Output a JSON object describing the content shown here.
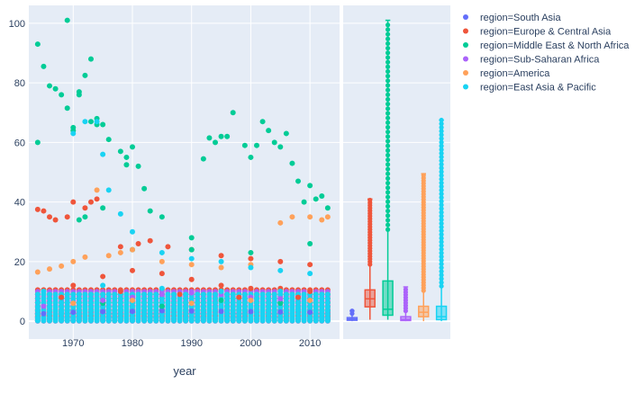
{
  "chart_data": {
    "type": "scatter",
    "xlabel": "year",
    "ylabel": "",
    "title": "",
    "xlim": [
      1962.5,
      2015
    ],
    "ylim": [
      -6,
      106
    ],
    "grid": true,
    "legend_position": "right",
    "x_ticks": [
      1970,
      1980,
      1990,
      2000,
      2010
    ],
    "y_ticks": [
      0,
      20,
      40,
      60,
      80,
      100
    ],
    "marginal": "box",
    "series": [
      {
        "name": "region=South Asia",
        "color": "#636efa",
        "points": [
          [
            1965,
            2.5
          ],
          [
            1970,
            3
          ],
          [
            1975,
            3.2
          ],
          [
            1980,
            3.3
          ],
          [
            1985,
            3.5
          ],
          [
            1990,
            3.4
          ],
          [
            1995,
            3.3
          ],
          [
            2000,
            3.2
          ],
          [
            2005,
            3.1
          ],
          [
            2010,
            3
          ]
        ],
        "box": {
          "min": 0,
          "q1": 0.3,
          "median": 0.7,
          "q3": 1.2,
          "max": 3.5
        }
      },
      {
        "name": "region=Europe & Central Asia",
        "color": "#ef553b",
        "points": [
          [
            1964,
            37.5
          ],
          [
            1965,
            37
          ],
          [
            1966,
            35
          ],
          [
            1967,
            34
          ],
          [
            1969,
            35
          ],
          [
            1970,
            40
          ],
          [
            1972,
            38
          ],
          [
            1973,
            40
          ],
          [
            1974,
            41
          ],
          [
            1978,
            25
          ],
          [
            1981,
            26
          ],
          [
            1983,
            27
          ],
          [
            1986,
            25
          ],
          [
            1990,
            24
          ],
          [
            1995,
            22
          ],
          [
            2000,
            21
          ],
          [
            2005,
            20
          ],
          [
            2010,
            19
          ],
          [
            1970,
            12
          ],
          [
            1975,
            15
          ],
          [
            1980,
            17
          ],
          [
            1985,
            16
          ],
          [
            1990,
            14
          ],
          [
            1995,
            12
          ],
          [
            2000,
            11
          ],
          [
            2005,
            11
          ],
          [
            2010,
            10
          ],
          [
            1968,
            8
          ],
          [
            1978,
            10
          ],
          [
            1988,
            9
          ],
          [
            1998,
            8
          ],
          [
            2008,
            8
          ]
        ],
        "box": {
          "min": 0.5,
          "q1": 4.8,
          "median": 7.5,
          "q3": 10.5,
          "max": 41
        }
      },
      {
        "name": "region=Middle East & North Africa",
        "color": "#00cc96",
        "points": [
          [
            1964,
            93
          ],
          [
            1964,
            60
          ],
          [
            1965,
            85.5
          ],
          [
            1966,
            79
          ],
          [
            1967,
            78
          ],
          [
            1968,
            76
          ],
          [
            1969,
            101
          ],
          [
            1969,
            71.5
          ],
          [
            1970,
            65
          ],
          [
            1970,
            64
          ],
          [
            1971,
            77
          ],
          [
            1971,
            76
          ],
          [
            1972,
            82.5
          ],
          [
            1973,
            88
          ],
          [
            1973,
            67
          ],
          [
            1974,
            68
          ],
          [
            1974,
            66
          ],
          [
            1975,
            66
          ],
          [
            1976,
            61
          ],
          [
            1978,
            57
          ],
          [
            1979,
            52.5
          ],
          [
            1979,
            55
          ],
          [
            1980,
            58.5
          ],
          [
            1981,
            52
          ],
          [
            1982,
            44.5
          ],
          [
            1971,
            34
          ],
          [
            1972,
            35
          ],
          [
            1975,
            38
          ],
          [
            1983,
            37
          ],
          [
            1985,
            35
          ],
          [
            1990,
            28
          ],
          [
            1992,
            54.5
          ],
          [
            1993,
            61.5
          ],
          [
            1994,
            60
          ],
          [
            1995,
            62
          ],
          [
            1996,
            62
          ],
          [
            1997,
            70
          ],
          [
            1999,
            59
          ],
          [
            2000,
            55
          ],
          [
            2001,
            59
          ],
          [
            2002,
            67
          ],
          [
            2003,
            64
          ],
          [
            2004,
            60
          ],
          [
            2005,
            58.5
          ],
          [
            2006,
            63
          ],
          [
            2007,
            53
          ],
          [
            2008,
            47
          ],
          [
            2009,
            40
          ],
          [
            2010,
            45.5
          ],
          [
            2011,
            41
          ],
          [
            2012,
            42
          ],
          [
            2013,
            38
          ],
          [
            1980,
            24
          ],
          [
            1990,
            24
          ],
          [
            2000,
            23
          ],
          [
            2010,
            26
          ],
          [
            1975,
            6
          ],
          [
            1985,
            5
          ],
          [
            1995,
            7
          ],
          [
            2005,
            6
          ]
        ],
        "box": {
          "min": 0.5,
          "q1": 2,
          "median": 4,
          "q3": 13.5,
          "max": 101
        }
      },
      {
        "name": "region=Sub-Saharan Africa",
        "color": "#ab63fa",
        "points": [
          [
            1965,
            5
          ],
          [
            1970,
            6
          ],
          [
            1975,
            7
          ],
          [
            1980,
            8
          ],
          [
            1985,
            9
          ],
          [
            1990,
            9.5
          ],
          [
            1995,
            9
          ],
          [
            2000,
            8
          ],
          [
            2005,
            7.5
          ],
          [
            2010,
            7
          ]
        ],
        "box": {
          "min": 0,
          "q1": 0.2,
          "median": 0.6,
          "q3": 1.5,
          "max": 11.5
        }
      },
      {
        "name": "region=America",
        "color": "#ffa15a",
        "points": [
          [
            1964,
            16.5
          ],
          [
            1966,
            17.5
          ],
          [
            1968,
            18.5
          ],
          [
            1970,
            20
          ],
          [
            1972,
            21.5
          ],
          [
            1974,
            44
          ],
          [
            1976,
            22
          ],
          [
            1978,
            23
          ],
          [
            1980,
            24
          ],
          [
            1985,
            20
          ],
          [
            1990,
            19
          ],
          [
            1995,
            18
          ],
          [
            2000,
            19
          ],
          [
            2005,
            33
          ],
          [
            2007,
            35
          ],
          [
            2010,
            35
          ],
          [
            2012,
            34
          ],
          [
            2013,
            35
          ],
          [
            1970,
            6
          ],
          [
            1980,
            7
          ],
          [
            1990,
            6
          ],
          [
            2000,
            7
          ],
          [
            2010,
            7
          ]
        ],
        "box": {
          "min": 0,
          "q1": 1.5,
          "median": 3,
          "q3": 5,
          "max": 49.5
        }
      },
      {
        "name": "region=East Asia & Pacific",
        "color": "#19d3f3",
        "points": [
          [
            1970,
            63
          ],
          [
            1972,
            67
          ],
          [
            1974,
            67
          ],
          [
            1975,
            56
          ],
          [
            1976,
            44
          ],
          [
            1978,
            36
          ],
          [
            1980,
            30
          ],
          [
            1985,
            23
          ],
          [
            1990,
            21
          ],
          [
            1995,
            20
          ],
          [
            2000,
            18
          ],
          [
            2005,
            17
          ],
          [
            2010,
            16
          ],
          [
            1965,
            10
          ],
          [
            1975,
            12
          ],
          [
            1985,
            11
          ],
          [
            1995,
            10
          ],
          [
            2005,
            10
          ],
          [
            1968,
            3
          ],
          [
            1978,
            4
          ],
          [
            1988,
            4
          ],
          [
            1998,
            4
          ],
          [
            2008,
            4
          ]
        ],
        "box": {
          "min": 0,
          "q1": 0.5,
          "median": 1.5,
          "q3": 5,
          "max": 67.5
        }
      }
    ]
  }
}
